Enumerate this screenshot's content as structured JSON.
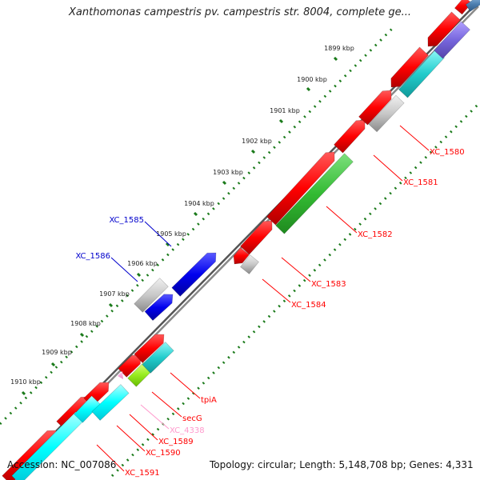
{
  "map": {
    "title": "Xanthomonas campestris pv. campestris str. 8004, complete ge...",
    "accession": "Accession: NC_007086",
    "summary": "Topology: circular; Length: 5,148,708 bp; Genes: 4,331"
  },
  "ticks": [
    {
      "label": "1899 kbp"
    },
    {
      "label": "1900 kbp"
    },
    {
      "label": "1901 kbp"
    },
    {
      "label": "1902 kbp"
    },
    {
      "label": "1903 kbp"
    },
    {
      "label": "1904 kbp"
    },
    {
      "label": "1905 kbp"
    },
    {
      "label": "1906 kbp"
    },
    {
      "label": "1907 kbp"
    },
    {
      "label": "1908 kbp"
    },
    {
      "label": "1909 kbp"
    },
    {
      "label": "1910 kbp"
    }
  ],
  "genes": [
    {
      "label": "XC_1580",
      "color": "#ff0000"
    },
    {
      "label": "XC_1581",
      "color": "#ff0000"
    },
    {
      "label": "XC_1582",
      "color": "#ff0000"
    },
    {
      "label": "XC_1583",
      "color": "#ff0000"
    },
    {
      "label": "XC_1584",
      "color": "#ff0000"
    },
    {
      "label": "XC_1585",
      "color": "#0000cc"
    },
    {
      "label": "XC_1586",
      "color": "#0000cc"
    },
    {
      "label": "tpiA",
      "color": "#ff0000"
    },
    {
      "label": "secG",
      "color": "#ff0000"
    },
    {
      "label": "XC_4338",
      "color": "#ff99cc"
    },
    {
      "label": "XC_1589",
      "color": "#ff0000"
    },
    {
      "label": "XC_1590",
      "color": "#ff0000"
    },
    {
      "label": "XC_1591",
      "color": "#ff0000"
    }
  ]
}
